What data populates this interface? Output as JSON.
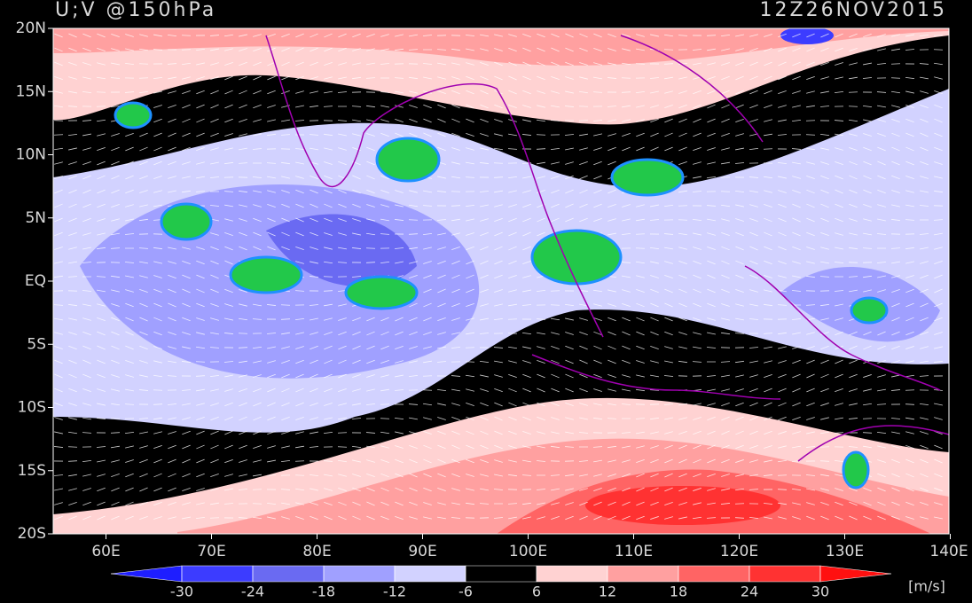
{
  "title": "U;V @150hPa",
  "time": "12Z26NOV2015",
  "lat_labels": [
    "20N",
    "15N",
    "10N",
    "5N",
    "EQ",
    "5S",
    "10S",
    "15S",
    "20S"
  ],
  "lon_labels": [
    "60E",
    "70E",
    "80E",
    "90E",
    "100E",
    "110E",
    "120E",
    "130E",
    "140E"
  ],
  "colorbar": {
    "ticks": [
      -30,
      -24,
      -18,
      -12,
      -6,
      6,
      12,
      18,
      24,
      30
    ],
    "colors": [
      "#1e1eff",
      "#3c3cff",
      "#6a6af2",
      "#a0a0ff",
      "#d2d2ff",
      "#000000",
      "#ffd2d2",
      "#ffa0a0",
      "#ff6464",
      "#ff3232",
      "#ff1010"
    ],
    "unit": "[m/s]"
  }
}
